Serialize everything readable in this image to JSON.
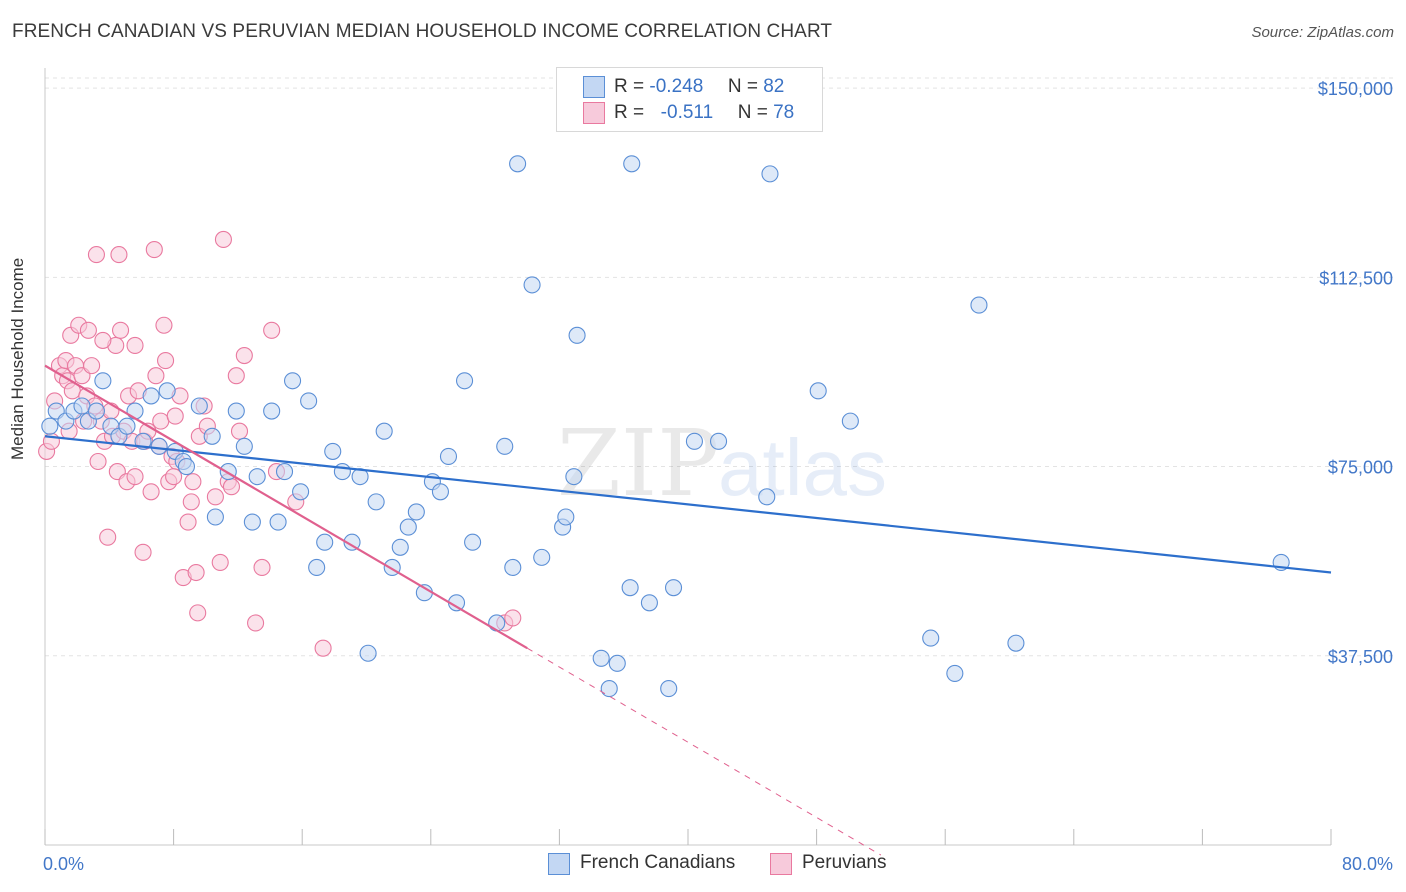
{
  "title": "FRENCH CANADIAN VS PERUVIAN MEDIAN HOUSEHOLD INCOME CORRELATION CHART",
  "source": "Source: ZipAtlas.com",
  "watermark": {
    "zip": "ZIP",
    "atlas": "atlas"
  },
  "legend": {
    "r_label": "R =",
    "n_label": "N =",
    "rows": [
      {
        "r": "-0.248",
        "n": "82"
      },
      {
        "r": "-0.511",
        "n": "78"
      }
    ]
  },
  "colors": {
    "blue": "#5b8fd6",
    "blue_fill": "#c3d7f3",
    "blue_line": "#2d6fcc",
    "pink": "#e9799f",
    "pink_fill": "#f7cadb",
    "pink_line": "#e0608e",
    "axis_text": "#4277c8",
    "grid": "#e3e3e3"
  },
  "chart_data": {
    "type": "scatter",
    "title": "FRENCH CANADIAN VS PERUVIAN MEDIAN HOUSEHOLD INCOME CORRELATION CHART",
    "xlabel": "",
    "ylabel": "Median Household Income",
    "xlim": [
      0,
      80
    ],
    "ylim": [
      0,
      152000
    ],
    "x_tick_labels": [
      "0.0%",
      "80.0%"
    ],
    "y_ticks": [
      37500,
      75000,
      112500,
      150000
    ],
    "y_tick_labels": [
      "$37,500",
      "$75,000",
      "$112,500",
      "$150,000"
    ],
    "grid": true,
    "legend_position": "top-center",
    "series": [
      {
        "name": "French Canadians",
        "r": -0.248,
        "n": 82,
        "trend": {
          "x": [
            0,
            80
          ],
          "y": [
            81000,
            54000
          ]
        },
        "points": [
          [
            0.3,
            83000
          ],
          [
            0.7,
            86000
          ],
          [
            1.3,
            84000
          ],
          [
            1.8,
            86000
          ],
          [
            2.3,
            87000
          ],
          [
            2.7,
            84000
          ],
          [
            3.2,
            86000
          ],
          [
            3.6,
            92000
          ],
          [
            4.1,
            83000
          ],
          [
            4.6,
            81000
          ],
          [
            5.1,
            83000
          ],
          [
            5.6,
            86000
          ],
          [
            6.1,
            80000
          ],
          [
            6.6,
            89000
          ],
          [
            7.1,
            79000
          ],
          [
            7.6,
            90000
          ],
          [
            8.1,
            78000
          ],
          [
            8.6,
            76000
          ],
          [
            8.8,
            75000
          ],
          [
            9.6,
            87000
          ],
          [
            10.4,
            81000
          ],
          [
            10.6,
            65000
          ],
          [
            11.4,
            74000
          ],
          [
            11.9,
            86000
          ],
          [
            12.4,
            79000
          ],
          [
            12.9,
            64000
          ],
          [
            13.2,
            73000
          ],
          [
            14.1,
            86000
          ],
          [
            14.5,
            64000
          ],
          [
            14.9,
            74000
          ],
          [
            15.4,
            92000
          ],
          [
            15.9,
            70000
          ],
          [
            16.4,
            88000
          ],
          [
            16.9,
            55000
          ],
          [
            17.4,
            60000
          ],
          [
            17.9,
            78000
          ],
          [
            18.5,
            74000
          ],
          [
            19.1,
            60000
          ],
          [
            19.6,
            73000
          ],
          [
            20.1,
            38000
          ],
          [
            20.6,
            68000
          ],
          [
            21.1,
            82000
          ],
          [
            21.6,
            55000
          ],
          [
            22.1,
            59000
          ],
          [
            22.6,
            63000
          ],
          [
            23.1,
            66000
          ],
          [
            23.6,
            50000
          ],
          [
            24.1,
            72000
          ],
          [
            24.6,
            70000
          ],
          [
            25.1,
            77000
          ],
          [
            25.6,
            48000
          ],
          [
            26.1,
            92000
          ],
          [
            26.6,
            60000
          ],
          [
            28.1,
            44000
          ],
          [
            28.6,
            79000
          ],
          [
            29.1,
            55000
          ],
          [
            29.4,
            135000
          ],
          [
            30.3,
            111000
          ],
          [
            30.9,
            57000
          ],
          [
            32.2,
            63000
          ],
          [
            32.4,
            65000
          ],
          [
            32.9,
            73000
          ],
          [
            33.1,
            101000
          ],
          [
            34.6,
            37000
          ],
          [
            35.1,
            31000
          ],
          [
            35.6,
            36000
          ],
          [
            36.4,
            51000
          ],
          [
            36.5,
            135000
          ],
          [
            37.6,
            48000
          ],
          [
            38.8,
            31000
          ],
          [
            39.1,
            51000
          ],
          [
            40.4,
            80000
          ],
          [
            41.9,
            80000
          ],
          [
            44.9,
            69000
          ],
          [
            45.1,
            133000
          ],
          [
            48.1,
            90000
          ],
          [
            50.1,
            84000
          ],
          [
            55.1,
            41000
          ],
          [
            56.6,
            34000
          ],
          [
            58.1,
            107000
          ],
          [
            60.4,
            40000
          ],
          [
            76.9,
            56000
          ]
        ]
      },
      {
        "name": "Peruvians",
        "r": -0.511,
        "n": 78,
        "trend": {
          "x": [
            0,
            30
          ],
          "y": [
            95000,
            39000
          ]
        },
        "trend_extended": {
          "x": [
            30,
            52
          ],
          "y": [
            39000,
            -2000
          ]
        },
        "points": [
          [
            0.1,
            78000
          ],
          [
            0.4,
            80000
          ],
          [
            0.6,
            88000
          ],
          [
            0.9,
            95000
          ],
          [
            1.1,
            93000
          ],
          [
            1.3,
            96000
          ],
          [
            1.4,
            92000
          ],
          [
            1.5,
            82000
          ],
          [
            1.6,
            101000
          ],
          [
            1.7,
            90000
          ],
          [
            1.9,
            95000
          ],
          [
            2.1,
            103000
          ],
          [
            2.3,
            93000
          ],
          [
            2.4,
            84000
          ],
          [
            2.6,
            89000
          ],
          [
            2.7,
            102000
          ],
          [
            2.9,
            95000
          ],
          [
            3.1,
            87000
          ],
          [
            3.2,
            117000
          ],
          [
            3.3,
            76000
          ],
          [
            3.5,
            84000
          ],
          [
            3.7,
            80000
          ],
          [
            3.9,
            61000
          ],
          [
            4.1,
            86000
          ],
          [
            4.2,
            81000
          ],
          [
            4.4,
            99000
          ],
          [
            4.5,
            74000
          ],
          [
            4.6,
            117000
          ],
          [
            4.7,
            102000
          ],
          [
            4.9,
            82000
          ],
          [
            5.1,
            72000
          ],
          [
            5.2,
            89000
          ],
          [
            5.4,
            80000
          ],
          [
            5.6,
            99000
          ],
          [
            5.8,
            90000
          ],
          [
            6.1,
            58000
          ],
          [
            6.2,
            80000
          ],
          [
            6.4,
            82000
          ],
          [
            6.6,
            70000
          ],
          [
            6.8,
            118000
          ],
          [
            6.9,
            93000
          ],
          [
            7.1,
            79000
          ],
          [
            7.2,
            84000
          ],
          [
            7.4,
            103000
          ],
          [
            7.5,
            96000
          ],
          [
            7.7,
            72000
          ],
          [
            7.9,
            77000
          ],
          [
            8.1,
            85000
          ],
          [
            8.2,
            76000
          ],
          [
            8.4,
            89000
          ],
          [
            8.6,
            53000
          ],
          [
            8.9,
            64000
          ],
          [
            9.1,
            68000
          ],
          [
            9.2,
            72000
          ],
          [
            9.4,
            54000
          ],
          [
            9.6,
            81000
          ],
          [
            9.9,
            87000
          ],
          [
            10.1,
            83000
          ],
          [
            10.6,
            69000
          ],
          [
            10.9,
            56000
          ],
          [
            11.1,
            120000
          ],
          [
            11.4,
            72000
          ],
          [
            11.6,
            71000
          ],
          [
            11.9,
            93000
          ],
          [
            12.1,
            82000
          ],
          [
            12.4,
            97000
          ],
          [
            13.1,
            44000
          ],
          [
            13.5,
            55000
          ],
          [
            14.1,
            102000
          ],
          [
            14.4,
            74000
          ],
          [
            15.6,
            68000
          ],
          [
            17.3,
            39000
          ],
          [
            28.6,
            44000
          ],
          [
            29.1,
            45000
          ],
          [
            3.6,
            100000
          ],
          [
            5.6,
            73000
          ],
          [
            9.5,
            46000
          ],
          [
            8.0,
            73000
          ]
        ]
      }
    ]
  },
  "bottom_legend": [
    "French Canadians",
    "Peruvians"
  ]
}
